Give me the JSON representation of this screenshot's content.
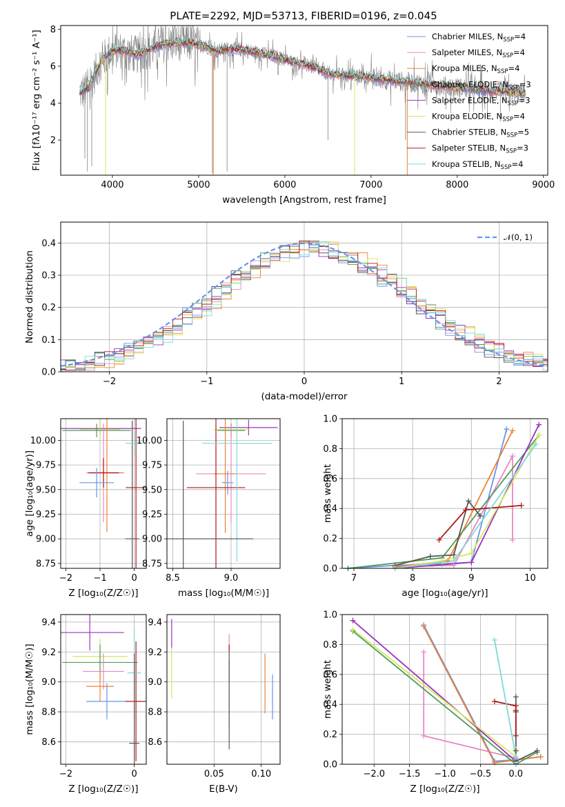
{
  "colors": {
    "c1": "#6495ed",
    "c2": "#e887c0",
    "c3": "#f08030",
    "c4": "#4e9a5a",
    "c5": "#9b30c0",
    "c6": "#d4e85a",
    "c7": "#555555",
    "c8": "#b01818",
    "c9": "#7fd8d8",
    "data": "#808080"
  },
  "chart_data": [
    {
      "type": "line",
      "title": "PLATE=2292, MJD=53713, FIBERID=0196, z=0.045",
      "xlabel": "wavelength [Angstrom, rest frame]",
      "ylabel": "Flux [fλ10⁻¹⁷ erg cm⁻² s⁻¹ A⁻¹]",
      "xlim": [
        3400,
        9050
      ],
      "ylim": [
        0.1,
        8.2
      ],
      "xticks": [
        4000,
        5000,
        6000,
        7000,
        8000,
        9000
      ],
      "yticks": [
        2,
        4,
        6,
        8
      ],
      "xtick_labels": [
        "4000",
        "5000",
        "6000",
        "7000",
        "8000",
        "9000"
      ],
      "ytick_labels": [
        "2",
        "4",
        "6",
        "8"
      ],
      "legend": [
        {
          "label": "Chabrier MILES, N",
          "sub": "SSP",
          "n": "=4"
        },
        {
          "label": "Salpeter MILES, N",
          "sub": "SSP",
          "n": "=4"
        },
        {
          "label": "Kroupa MILES, N",
          "sub": "SSP",
          "n": "=4"
        },
        {
          "label": "Chabrier ELODIE, N",
          "sub": "SSP",
          "n": "=3"
        },
        {
          "label": "Salpeter ELODIE, N",
          "sub": "SSP",
          "n": "=3"
        },
        {
          "label": "Kroupa ELODIE, N",
          "sub": "SSP",
          "n": "=4"
        },
        {
          "label": "Chabrier STELIB, N",
          "sub": "SSP",
          "n": "=5"
        },
        {
          "label": "Salpeter STELIB, N",
          "sub": "SSP",
          "n": "=3"
        },
        {
          "label": "Kroupa STELIB, N",
          "sub": "SSP",
          "n": "=4"
        }
      ],
      "legend_position": "upper-right",
      "model_continuum": [
        [
          3650,
          4.6
        ],
        [
          3720,
          4.8
        ],
        [
          3800,
          5.6
        ],
        [
          3870,
          6.3
        ],
        [
          3920,
          6.5
        ],
        [
          3960,
          6.7
        ],
        [
          4050,
          6.9
        ],
        [
          4150,
          6.8
        ],
        [
          4300,
          6.6
        ],
        [
          4420,
          6.9
        ],
        [
          4600,
          7.2
        ],
        [
          4800,
          7.3
        ],
        [
          4950,
          7.2
        ],
        [
          5100,
          7.05
        ],
        [
          5200,
          6.8
        ],
        [
          5300,
          6.9
        ],
        [
          5500,
          6.9
        ],
        [
          5700,
          6.7
        ],
        [
          5900,
          6.5
        ],
        [
          6100,
          6.2
        ],
        [
          6300,
          6.0
        ],
        [
          6500,
          5.6
        ],
        [
          6700,
          5.5
        ],
        [
          6900,
          5.45
        ],
        [
          7100,
          5.3
        ],
        [
          7300,
          5.2
        ],
        [
          7500,
          5.1
        ],
        [
          7700,
          5.0
        ],
        [
          7900,
          4.9
        ],
        [
          8100,
          4.8
        ],
        [
          8300,
          4.7
        ],
        [
          8500,
          4.65
        ],
        [
          8700,
          4.55
        ],
        [
          8800,
          4.5
        ]
      ]
    },
    {
      "type": "line",
      "xlabel": "(data-model)/error",
      "ylabel": "Normed distribution",
      "xlim": [
        -2.5,
        2.5
      ],
      "ylim": [
        0,
        0.465
      ],
      "xticks": [
        -2,
        -1,
        0,
        1,
        2
      ],
      "yticks": [
        0.0,
        0.1,
        0.2,
        0.3,
        0.4
      ],
      "xtick_labels": [
        "−2",
        "−1",
        "0",
        "1",
        "2"
      ],
      "ytick_labels": [
        "0.0",
        "0.1",
        "0.2",
        "0.3",
        "0.4"
      ],
      "grid": true,
      "legend": [
        "𝒩(0, 1)"
      ],
      "legend_position": "upper-right",
      "bin_width": 0.1
    },
    {
      "type": "scatter",
      "xlabel": "Z [log₁₀(Z/Z☉)]",
      "ylabel": "age  [log₁₀(age/yr)]",
      "xlim": [
        -2.15,
        0.35
      ],
      "ylim": [
        8.7,
        10.22
      ],
      "xticks": [
        -2,
        -1,
        0
      ],
      "yticks": [
        8.75,
        9.0,
        9.25,
        9.5,
        9.75,
        10.0
      ],
      "xtick_labels": [
        "−2",
        "−1",
        "0"
      ],
      "ytick_labels": [
        "8.75",
        "9.00",
        "9.25",
        "9.50",
        "9.75",
        "10.00"
      ],
      "grid": true,
      "points": [
        {
          "c": "c5",
          "x": -1.0,
          "xerr": 1.2,
          "y": 10.12,
          "yerr": 0.07
        },
        {
          "c": "c6",
          "x": -1.0,
          "xerr": 0.6,
          "y": 10.11,
          "yerr": 0.08
        },
        {
          "c": "c4",
          "x": -1.1,
          "xerr": 1.0,
          "y": 10.1,
          "yerr": 0.07
        },
        {
          "c": "c2",
          "x": -0.9,
          "xerr": 0.5,
          "y": 9.67,
          "yerr": 0.5
        },
        {
          "c": "c3",
          "x": -0.8,
          "xerr": 0.5,
          "y": 9.67,
          "yerr": 0.6
        },
        {
          "c": "c8",
          "x": -0.9,
          "xerr": 0.45,
          "y": 9.67,
          "yerr": 0.15
        },
        {
          "c": "c1",
          "x": -1.1,
          "xerr": 0.5,
          "y": 9.57,
          "yerr": 0.15
        },
        {
          "c": "c7",
          "x": -0.06,
          "xerr": 0.2,
          "y": 9.0,
          "yerr": 1.2
        },
        {
          "c": "c8",
          "x": 0.05,
          "xerr": 0.3,
          "y": 9.52,
          "yerr": 1.3
        },
        {
          "c": "c9",
          "x": 0.0,
          "xerr": 0.25,
          "y": 9.97,
          "yerr": 0.12
        }
      ]
    },
    {
      "type": "scatter",
      "xlabel": "mass [log₁₀(M/M☉)]",
      "ylabel": "",
      "xlim": [
        8.45,
        9.42
      ],
      "ylim": [
        8.7,
        10.22
      ],
      "xticks": [
        8.5,
        9.0
      ],
      "yticks": [
        8.75,
        9.0,
        9.25,
        9.5,
        9.75,
        10.0
      ],
      "xtick_labels": [
        "8.5",
        "9.0"
      ],
      "ytick_labels": [
        "8.75",
        "9.00",
        "9.25",
        "9.50",
        "9.75",
        "10.00"
      ],
      "grid": true,
      "points": [
        {
          "c": "c5",
          "x": 9.15,
          "xerr": 0.25,
          "y": 10.13,
          "yerr": 0.08
        },
        {
          "c": "c6",
          "x": 9.0,
          "xerr": 0.15,
          "y": 10.11,
          "yerr": 0.08
        },
        {
          "c": "c4",
          "x": 9.0,
          "xerr": 0.12,
          "y": 10.1,
          "yerr": 0.07
        },
        {
          "c": "c2",
          "x": 9.0,
          "xerr": 0.3,
          "y": 9.66,
          "yerr": 0.5
        },
        {
          "c": "c3",
          "x": 8.95,
          "xerr": 0.1,
          "y": 9.66,
          "yerr": 0.6
        },
        {
          "c": "c1",
          "x": 8.97,
          "xerr": 0.05,
          "y": 9.57,
          "yerr": 0.12
        },
        {
          "c": "c8",
          "x": 8.87,
          "xerr": 0.25,
          "y": 9.52,
          "yerr": 1.3
        },
        {
          "c": "c9",
          "x": 9.05,
          "xerr": 0.3,
          "y": 9.97,
          "yerr": 1.2
        },
        {
          "c": "c7",
          "x": 8.59,
          "xerr": 0.6,
          "y": 9.0,
          "yerr": 1.2
        }
      ]
    },
    {
      "type": "line",
      "xlabel": "age  [log₁₀(age/yr)]",
      "ylabel": "mass weight",
      "xlim": [
        6.8,
        10.3
      ],
      "ylim": [
        0,
        1
      ],
      "xticks": [
        7,
        8,
        9,
        10
      ],
      "yticks": [
        0.0,
        0.2,
        0.4,
        0.6,
        0.8,
        1.0
      ],
      "xtick_labels": [
        "7",
        "8",
        "9",
        "10"
      ],
      "ytick_labels": [
        "0.0",
        "0.2",
        "0.4",
        "0.6",
        "0.8",
        "1.0"
      ],
      "grid": true,
      "series": [
        {
          "c": "c1",
          "x": [
            6.9,
            7.7,
            8.5,
            9.0,
            9.6
          ],
          "y": [
            0.0,
            0.02,
            0.03,
            0.04,
            0.93
          ]
        },
        {
          "c": "c2",
          "x": [
            7.7,
            8.7,
            9.7,
            9.7
          ],
          "y": [
            0.01,
            0.02,
            0.75,
            0.19
          ]
        },
        {
          "c": "c3",
          "x": [
            7.7,
            8.6,
            9.7
          ],
          "y": [
            0.01,
            0.05,
            0.92
          ]
        },
        {
          "c": "c4",
          "x": [
            6.9,
            8.5,
            10.15
          ],
          "y": [
            0.0,
            0.07,
            0.89
          ]
        },
        {
          "c": "c5",
          "x": [
            7.7,
            9.0,
            10.15
          ],
          "y": [
            0.0,
            0.04,
            0.96
          ]
        },
        {
          "c": "c6",
          "x": [
            7.7,
            8.5,
            9.0,
            10.15
          ],
          "y": [
            0.0,
            0.05,
            0.1,
            0.89
          ]
        },
        {
          "c": "c7",
          "x": [
            7.7,
            8.3,
            8.7,
            8.95,
            9.15
          ],
          "y": [
            0.02,
            0.08,
            0.09,
            0.45,
            0.35
          ]
        },
        {
          "c": "c8",
          "x": [
            8.45,
            8.9,
            9.85
          ],
          "y": [
            0.19,
            0.39,
            0.42
          ]
        },
        {
          "c": "c9",
          "x": [
            7.7,
            8.7,
            10.1
          ],
          "y": [
            0.0,
            0.05,
            0.83
          ]
        }
      ]
    },
    {
      "type": "scatter",
      "xlabel": "Z [log₁₀(Z/Z☉)]",
      "ylabel": "mass [log₁₀(M/M☉)]",
      "xlim": [
        -2.15,
        0.35
      ],
      "ylim": [
        8.45,
        9.45
      ],
      "xticks": [
        -2,
        0
      ],
      "yticks": [
        8.6,
        8.8,
        9.0,
        9.2,
        9.4
      ],
      "xtick_labels": [
        "−2",
        "0"
      ],
      "ytick_labels": [
        "8.6",
        "8.8",
        "9.0",
        "9.2",
        "9.4"
      ],
      "grid": true,
      "points": [
        {
          "c": "c5",
          "x": -1.3,
          "xerr": 1.0,
          "y": 9.33,
          "yerr": 0.12
        },
        {
          "c": "c6",
          "x": -1.0,
          "xerr": 0.8,
          "y": 9.17,
          "yerr": 0.12
        },
        {
          "c": "c4",
          "x": -1.0,
          "xerr": 1.1,
          "y": 9.13,
          "yerr": 0.12
        },
        {
          "c": "c2",
          "x": -0.9,
          "xerr": 0.6,
          "y": 9.07,
          "yerr": 0.12
        },
        {
          "c": "c3",
          "x": -1.0,
          "xerr": 0.4,
          "y": 8.97,
          "yerr": 0.1
        },
        {
          "c": "c1",
          "x": -0.8,
          "xerr": 0.6,
          "y": 8.87,
          "yerr": 0.12
        },
        {
          "c": "c8",
          "x": 0.05,
          "xerr": 0.3,
          "y": 8.87,
          "yerr": 0.4
        },
        {
          "c": "c9",
          "x": 0.0,
          "xerr": 0.2,
          "y": 9.06,
          "yerr": 0.3
        },
        {
          "c": "c7",
          "x": 0.0,
          "xerr": 0.15,
          "y": 8.59,
          "yerr": 0.6
        }
      ]
    },
    {
      "type": "scatter",
      "xlabel": "E(B-V)",
      "ylabel": "",
      "xlim": [
        0.0,
        0.12
      ],
      "ylim": [
        8.45,
        9.45
      ],
      "xticks": [
        0.05,
        0.1
      ],
      "yticks": [
        8.6,
        8.8,
        9.0,
        9.2,
        9.4
      ],
      "xtick_labels": [
        "0.05",
        "0.10"
      ],
      "ytick_labels": [
        "8.6",
        "8.8",
        "9.0",
        "9.2",
        "9.4"
      ],
      "grid": true,
      "points": [
        {
          "c": "c5",
          "x": 0.005,
          "y": 9.32,
          "yerr": 0.1
        },
        {
          "c": "c6",
          "x": 0.005,
          "y": 9.06,
          "yerr": 0.17
        },
        {
          "c": "c2",
          "x": 0.066,
          "y": 9.25,
          "yerr": 0.07
        },
        {
          "c": "c8",
          "x": 0.066,
          "y": 9.2,
          "yerr": 0.05
        },
        {
          "c": "c4",
          "x": 0.066,
          "y": 9.1,
          "yerr": 0.1
        },
        {
          "c": "c9",
          "x": 0.066,
          "y": 8.9,
          "yerr": 0.22
        },
        {
          "c": "c7",
          "x": 0.066,
          "y": 8.85,
          "yerr": 0.3
        },
        {
          "c": "c3",
          "x": 0.104,
          "y": 8.99,
          "yerr": 0.2
        },
        {
          "c": "c1",
          "x": 0.112,
          "y": 8.9,
          "yerr": 0.15
        }
      ]
    },
    {
      "type": "line",
      "xlabel": "Z [log₁₀(Z/Z☉)]",
      "ylabel": "mass weight",
      "xlim": [
        -2.45,
        0.45
      ],
      "ylim": [
        0,
        1
      ],
      "xticks": [
        -2.0,
        -1.5,
        -1.0,
        -0.5,
        0.0
      ],
      "yticks": [
        0.0,
        0.2,
        0.4,
        0.6,
        0.8,
        1.0
      ],
      "xtick_labels": [
        "−2.0",
        "−1.5",
        "−1.0",
        "−0.5",
        "0.0"
      ],
      "ytick_labels": [
        "0.0",
        "0.2",
        "0.4",
        "0.6",
        "0.8",
        "1.0"
      ],
      "grid": true,
      "series": [
        {
          "c": "c1",
          "x": [
            -1.3,
            -0.3,
            0.0,
            0.35
          ],
          "y": [
            0.93,
            0.02,
            0.03,
            0.05
          ]
        },
        {
          "c": "c2",
          "x": [
            -1.3,
            -1.3,
            0.0
          ],
          "y": [
            0.75,
            0.19,
            0.04
          ]
        },
        {
          "c": "c3",
          "x": [
            -1.3,
            -0.3,
            0.35
          ],
          "y": [
            0.92,
            0.01,
            0.05
          ]
        },
        {
          "c": "c4",
          "x": [
            -2.3,
            0.0,
            0.3
          ],
          "y": [
            0.89,
            0.0,
            0.08
          ]
        },
        {
          "c": "c5",
          "x": [
            -2.3,
            0.0
          ],
          "y": [
            0.96,
            0.02
          ]
        },
        {
          "c": "c6",
          "x": [
            -2.3,
            -0.0,
            0.0
          ],
          "y": [
            0.9,
            0.05,
            0.1
          ]
        },
        {
          "c": "c7",
          "x": [
            0.0,
            0.0,
            0.0,
            0.0,
            0.3
          ],
          "y": [
            0.45,
            0.35,
            0.09,
            0.02,
            0.09
          ]
        },
        {
          "c": "c8",
          "x": [
            -0.3,
            0.0,
            0.0,
            0.0
          ],
          "y": [
            0.42,
            0.39,
            0.36,
            0.19
          ]
        },
        {
          "c": "c9",
          "x": [
            -0.3,
            0.0,
            0.0
          ],
          "y": [
            0.83,
            0.05,
            0.0
          ]
        }
      ]
    }
  ]
}
